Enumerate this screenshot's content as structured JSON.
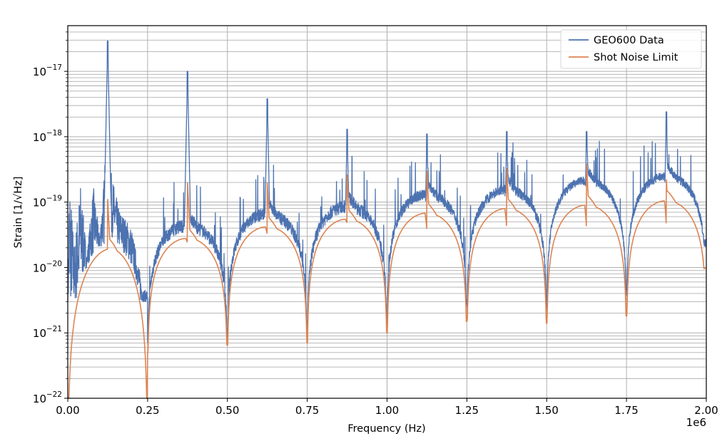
{
  "chart_data": {
    "type": "line",
    "title": "",
    "xlabel": "Frequency (Hz)",
    "ylabel": "Strain [1/√Hz]",
    "x_offset_label": "1e6",
    "xscale": "linear",
    "yscale": "log",
    "xlim": [
      0,
      2000000
    ],
    "ylim": [
      1e-22,
      5e-17
    ],
    "grid": true,
    "grid_minor_y": true,
    "legend_position": "upper right",
    "x_ticks": [
      0,
      250000,
      500000,
      750000,
      1000000,
      1250000,
      1500000,
      1750000,
      2000000
    ],
    "x_tick_labels": [
      "0.00",
      "0.25",
      "0.50",
      "0.75",
      "1.00",
      "1.25",
      "1.50",
      "1.75",
      "2.00"
    ],
    "y_ticks": [
      1e-22,
      1e-21,
      1e-20,
      1e-19,
      1e-18,
      1e-17
    ],
    "y_tick_labels": [
      {
        "base": "10",
        "exp": "−22"
      },
      {
        "base": "10",
        "exp": "−21"
      },
      {
        "base": "10",
        "exp": "−20"
      },
      {
        "base": "10",
        "exp": "−19"
      },
      {
        "base": "10",
        "exp": "−18"
      },
      {
        "base": "10",
        "exp": "−17"
      }
    ],
    "series": [
      {
        "name": "GEO600 Data",
        "color": "#4c72b0",
        "description": "Noisy measured strain spectrum with periodic nulls every 0.25 MHz and narrow peaks near odd multiples of 0.125 MHz",
        "envelope_points_mhz_strain": [
          [
            0.0,
            3e-21
          ],
          [
            0.005,
            3e-19
          ],
          [
            0.02,
            2e-20
          ],
          [
            0.04,
            2e-19
          ],
          [
            0.06,
            1.5e-20
          ],
          [
            0.08,
            1.8e-19
          ],
          [
            0.1,
            3e-20
          ],
          [
            0.115,
            3e-19
          ],
          [
            0.125,
            2.9e-17
          ],
          [
            0.13,
            4e-19
          ],
          [
            0.16,
            8e-20
          ],
          [
            0.2,
            4e-20
          ],
          [
            0.25,
            2e-21
          ],
          [
            0.3,
            4e-20
          ],
          [
            0.35,
            5e-20
          ],
          [
            0.375,
            1e-17
          ],
          [
            0.4,
            8e-20
          ],
          [
            0.45,
            6e-20
          ],
          [
            0.5,
            3e-21
          ],
          [
            0.55,
            4e-20
          ],
          [
            0.6,
            5e-20
          ],
          [
            0.625,
            3.8e-18
          ],
          [
            0.65,
            7e-20
          ],
          [
            0.7,
            5e-20
          ],
          [
            0.75,
            4e-21
          ],
          [
            0.8,
            7e-20
          ],
          [
            0.85,
            1e-19
          ],
          [
            0.875,
            1.3e-18
          ],
          [
            0.9,
            1.1e-19
          ],
          [
            0.95,
            8e-20
          ],
          [
            1.0,
            5e-21
          ],
          [
            1.05,
            1e-19
          ],
          [
            1.1,
            1.2e-19
          ],
          [
            1.125,
            1.1e-18
          ],
          [
            1.15,
            1.6e-19
          ],
          [
            1.2,
            1.2e-19
          ],
          [
            1.25,
            6e-21
          ],
          [
            1.3,
            1.2e-19
          ],
          [
            1.35,
            1.5e-19
          ],
          [
            1.375,
            1.2e-18
          ],
          [
            1.4,
            1.8e-19
          ],
          [
            1.45,
            1.4e-19
          ],
          [
            1.5,
            6e-21
          ],
          [
            1.55,
            1.4e-19
          ],
          [
            1.6,
            2e-19
          ],
          [
            1.625,
            1.2e-18
          ],
          [
            1.65,
            2.2e-19
          ],
          [
            1.7,
            1.8e-19
          ],
          [
            1.75,
            5e-21
          ],
          [
            1.8,
            2e-19
          ],
          [
            1.85,
            2.5e-19
          ],
          [
            1.875,
            2.4e-18
          ],
          [
            1.9,
            3.3e-19
          ],
          [
            1.95,
            3e-19
          ],
          [
            2.0,
            6e-20
          ]
        ]
      },
      {
        "name": "Shot Noise Limit",
        "color": "#dd8452",
        "description": "Smooth theoretical limit with nulls every 0.25 MHz and small notch/peak features at odd multiples of 0.125 MHz",
        "null_points_mhz_strain": [
          [
            0.0,
            1e-22
          ],
          [
            0.25,
            5e-22
          ],
          [
            0.5,
            6.5e-22
          ],
          [
            0.75,
            7e-22
          ],
          [
            1.0,
            1e-21
          ],
          [
            1.25,
            1.5e-21
          ],
          [
            1.5,
            1.4e-21
          ],
          [
            1.75,
            1.8e-21
          ],
          [
            2.0,
            1e-20
          ]
        ],
        "arch_max_mhz_strain": [
          [
            0.19,
            2e-20
          ],
          [
            0.375,
            2.8e-20
          ],
          [
            0.625,
            4.2e-20
          ],
          [
            0.875,
            5.5e-20
          ],
          [
            1.125,
            6.8e-20
          ],
          [
            1.375,
            8e-20
          ],
          [
            1.625,
            9e-20
          ],
          [
            1.875,
            1.05e-19
          ]
        ],
        "feature_peaks_mhz_strain": [
          [
            0.125,
            1.1e-19
          ],
          [
            0.375,
            2e-19
          ],
          [
            0.625,
            2e-19
          ],
          [
            0.875,
            2.6e-19
          ],
          [
            1.125,
            3e-19
          ],
          [
            1.375,
            3.3e-19
          ],
          [
            1.625,
            3.8e-19
          ],
          [
            1.875,
            2.2e-19
          ]
        ],
        "feature_notches_mhz_strain": [
          [
            0.375,
            2.4e-20
          ],
          [
            0.625,
            3.2e-20
          ],
          [
            0.875,
            4.8e-20
          ],
          [
            1.125,
            3.5e-20
          ],
          [
            1.375,
            3.8e-20
          ],
          [
            1.625,
            3.6e-20
          ],
          [
            1.875,
            3.9e-20
          ]
        ]
      }
    ],
    "legend": [
      {
        "label": "GEO600 Data",
        "color": "#4c72b0"
      },
      {
        "label": "Shot Noise Limit",
        "color": "#dd8452"
      }
    ]
  },
  "colors": {
    "grid": "#b0b0b0",
    "axis": "#000000",
    "background": "#ffffff"
  }
}
